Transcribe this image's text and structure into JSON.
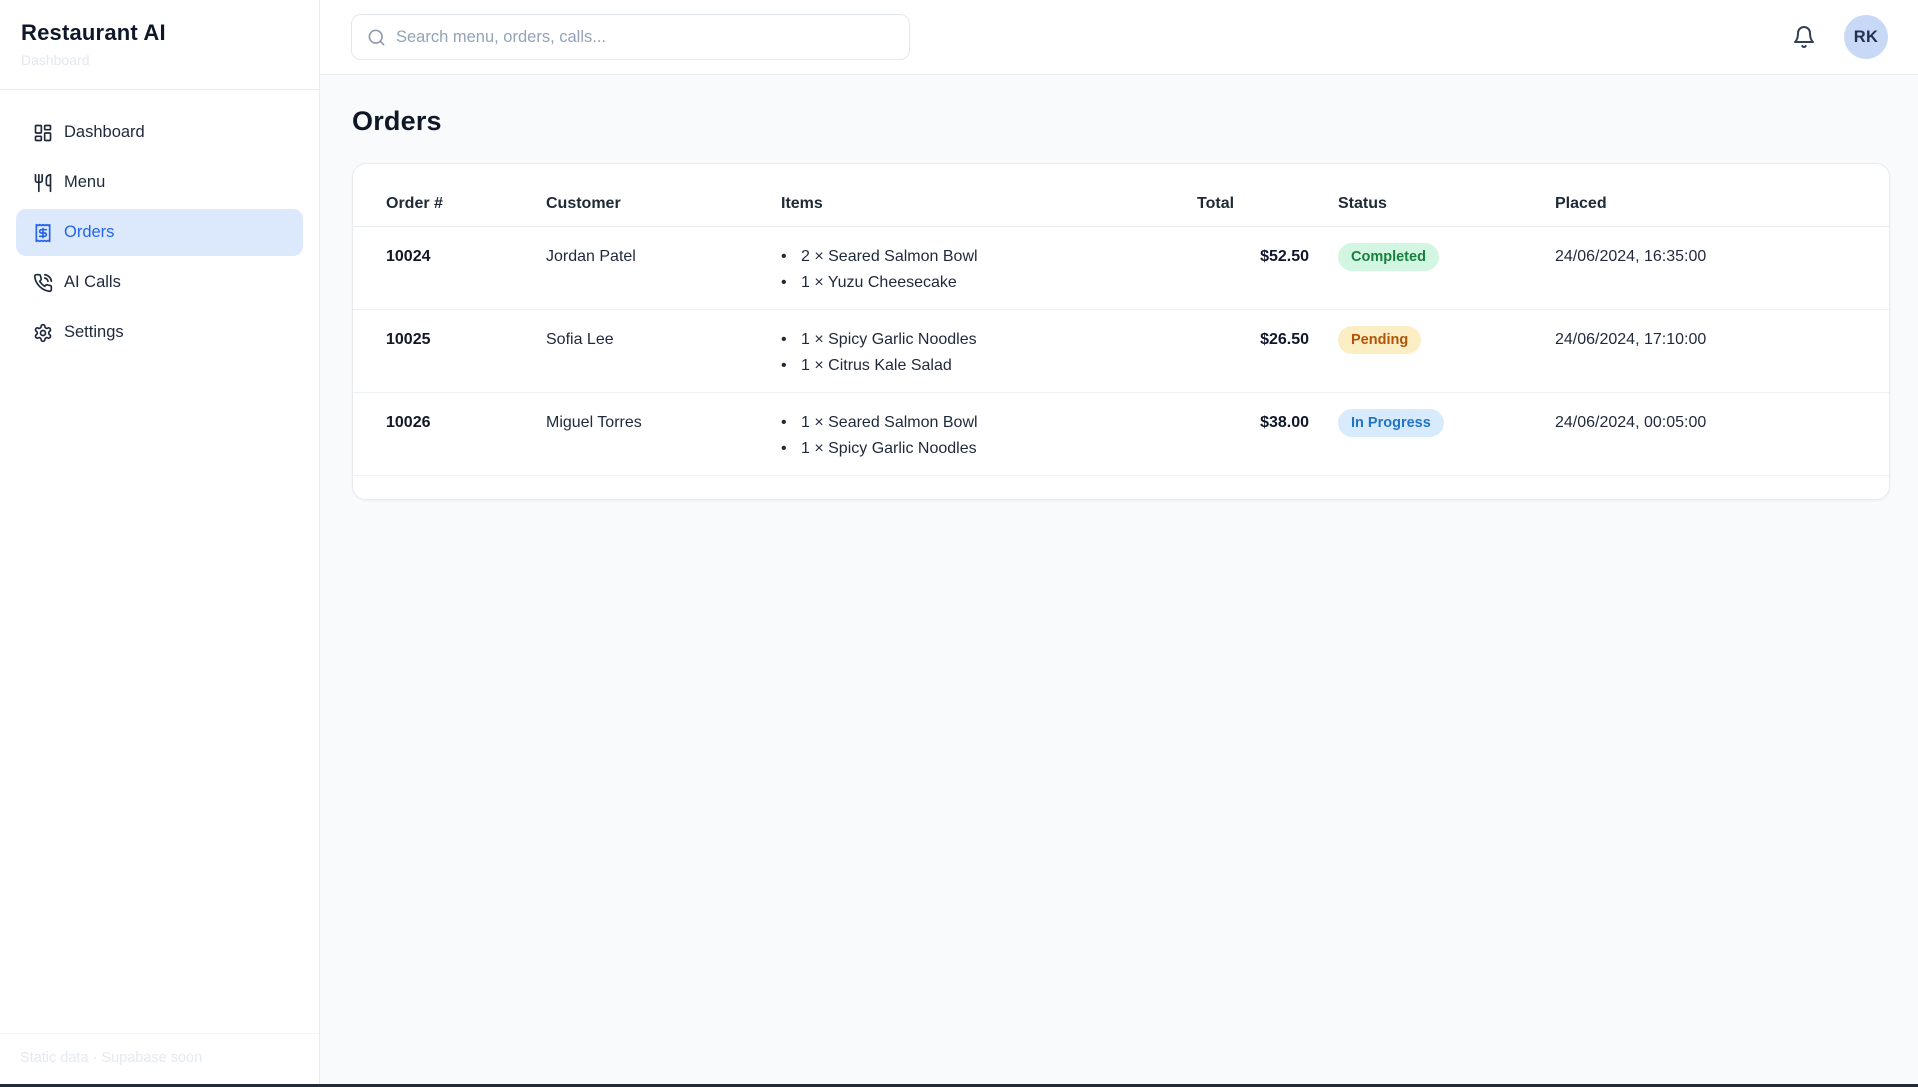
{
  "app": {
    "title": "Restaurant AI",
    "subtitle": "Dashboard",
    "footer_note": "Static data · Supabase soon"
  },
  "topbar": {
    "search_placeholder": "Search menu, orders, calls...",
    "bell_icon": "bell-icon",
    "avatar_initials": "RK"
  },
  "sidebar": {
    "items": [
      {
        "label": "Dashboard",
        "icon": "layout-dashboard-icon",
        "active": false
      },
      {
        "label": "Menu",
        "icon": "utensils-icon",
        "active": false
      },
      {
        "label": "Orders",
        "icon": "receipt-icon",
        "active": true
      },
      {
        "label": "AI Calls",
        "icon": "phone-call-icon",
        "active": false
      },
      {
        "label": "Settings",
        "icon": "gear-icon",
        "active": false
      }
    ],
    "active_bg": "#dce9fd",
    "active_text": "#2563eb"
  },
  "page": {
    "title": "Orders"
  },
  "orders_table": {
    "columns": [
      "Order #",
      "Customer",
      "Items",
      "Total",
      "Status",
      "Placed"
    ],
    "rows": [
      {
        "order_no": "10024",
        "customer": "Jordan Patel",
        "items": [
          "2 × Seared Salmon Bowl",
          "1 × Yuzu Cheesecake"
        ],
        "total": "$52.50",
        "status": "Completed",
        "status_bg": "#d3f6e3",
        "status_text": "#16803c",
        "placed": "24/06/2024, 16:35:00"
      },
      {
        "order_no": "10025",
        "customer": "Sofia Lee",
        "items": [
          "1 × Spicy Garlic Noodles",
          "1 × Citrus Kale Salad"
        ],
        "total": "$26.50",
        "status": "Pending",
        "status_bg": "#fbeec4",
        "status_text": "#b05408",
        "placed": "24/06/2024, 17:10:00"
      },
      {
        "order_no": "10026",
        "customer": "Miguel Torres",
        "items": [
          "1 × Seared Salmon Bowl",
          "1 × Spicy Garlic Noodles"
        ],
        "total": "$38.00",
        "status": "In Progress",
        "status_bg": "#d8ebfd",
        "status_text": "#2374c6",
        "placed": "24/06/2024, 00:05:00"
      }
    ]
  }
}
